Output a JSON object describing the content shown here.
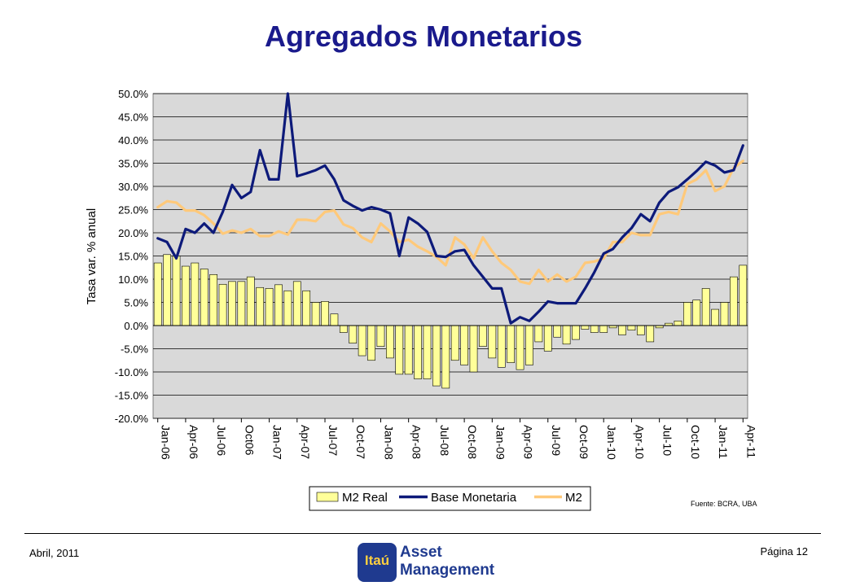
{
  "page": {
    "title": "Agregados Monetarios",
    "source": "Fuente: BCRA, UBA",
    "date": "Abril, 2011",
    "page_number": "Página 12",
    "logo": {
      "brand": "Itaú",
      "line1": "Asset",
      "line2": "Management"
    }
  },
  "chart_data": {
    "type": "bar",
    "title": "",
    "xlabel": "",
    "ylabel": "Tasa var. % anual",
    "ylim": [
      -20,
      50
    ],
    "y_ticks": [
      "-20.0%",
      "-15.0%",
      "-10.0%",
      "-5.0%",
      "0.0%",
      "5.0%",
      "10.0%",
      "15.0%",
      "20.0%",
      "25.0%",
      "30.0%",
      "35.0%",
      "40.0%",
      "45.0%",
      "50.0%"
    ],
    "x_tick_labels": [
      "Jan-06",
      "Apr-06",
      "Jul-06",
      "Oct06",
      "Jan-07",
      "Apr-07",
      "Jul-07",
      "Oct-07",
      "Jan-08",
      "Apr-08",
      "Jul-08",
      "Oct-08",
      "Jan-09",
      "Apr-09",
      "Jul-09",
      "Oct-09",
      "Jan-10",
      "Apr-10",
      "Jul-10",
      "Oct-10",
      "Jan-11",
      "Apr-11"
    ],
    "grid": true,
    "plot_background": "#d9d9d9",
    "legend_position": "bottom",
    "colors": {
      "m2_real": "#ffff99",
      "base": "#0d1a7a",
      "m2": "#ffc97a",
      "title": "#1a1a8c"
    },
    "series": [
      {
        "name": "M2 Real",
        "type": "bar",
        "values": [
          13.5,
          15.3,
          15.0,
          12.8,
          13.5,
          12.2,
          11.0,
          8.9,
          9.5,
          9.5,
          10.5,
          8.2,
          8.0,
          8.8,
          7.5,
          9.5,
          7.5,
          5.0,
          5.2,
          2.5,
          -1.5,
          -3.8,
          -6.5,
          -7.5,
          -4.5,
          -7.0,
          -10.5,
          -10.5,
          -11.5,
          -11.5,
          -13.0,
          -13.5,
          -7.5,
          -8.5,
          -10.0,
          -4.5,
          -7.0,
          -9.0,
          -8.0,
          -9.5,
          -8.5,
          -3.5,
          -5.5,
          -2.5,
          -4.0,
          -3.0,
          -0.8,
          -1.5,
          -1.5,
          -0.5,
          -2.0,
          -1.0,
          -2.0,
          -3.5,
          -0.5,
          0.5,
          1.0,
          5.0,
          5.5,
          8.0,
          3.5,
          5.0,
          10.5,
          13.0
        ]
      },
      {
        "name": "Base Monetaria",
        "type": "line",
        "values": [
          18.8,
          18.0,
          14.5,
          20.8,
          20.0,
          22.0,
          20.0,
          24.5,
          30.3,
          27.5,
          28.8,
          37.8,
          31.5,
          31.5,
          50.0,
          32.2,
          32.8,
          33.5,
          34.5,
          31.5,
          27.0,
          25.8,
          24.8,
          25.5,
          25.0,
          24.2,
          15.0,
          23.3,
          22.0,
          20.2,
          15.0,
          14.8,
          16.0,
          16.3,
          13.0,
          10.5,
          8.0,
          8.0,
          0.5,
          1.8,
          1.0,
          3.0,
          5.2,
          4.8,
          4.8,
          4.8,
          8.0,
          11.5,
          15.5,
          16.5,
          19.0,
          21.0,
          24.0,
          22.5,
          26.5,
          28.8,
          29.8,
          31.5,
          33.3,
          35.3,
          34.5,
          33.0,
          33.5,
          38.8
        ]
      },
      {
        "name": "M2",
        "type": "line",
        "values": [
          25.5,
          26.8,
          26.5,
          24.8,
          24.8,
          23.8,
          22.0,
          19.8,
          20.5,
          20.0,
          20.8,
          19.3,
          19.3,
          20.3,
          19.6,
          22.8,
          22.8,
          22.5,
          24.5,
          24.8,
          21.8,
          21.0,
          19.0,
          18.0,
          22.0,
          20.3,
          18.0,
          18.5,
          17.0,
          16.0,
          14.8,
          13.0,
          19.0,
          17.5,
          14.5,
          19.0,
          16.0,
          13.5,
          12.0,
          9.5,
          9.0,
          12.0,
          9.5,
          11.0,
          9.5,
          10.5,
          13.5,
          13.8,
          14.5,
          18.0,
          18.0,
          20.0,
          19.5,
          19.5,
          24.0,
          24.5,
          24.0,
          30.5,
          31.5,
          33.5,
          29.0,
          30.0,
          34.0,
          35.5
        ]
      }
    ]
  }
}
